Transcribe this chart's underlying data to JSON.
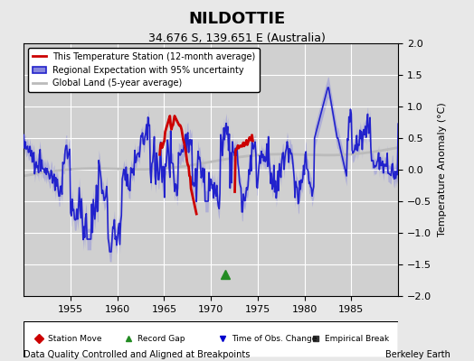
{
  "title": "NILDOTTIE",
  "subtitle": "34.676 S, 139.651 E (Australia)",
  "ylabel": "Temperature Anomaly (°C)",
  "xlabel_note": "Data Quality Controlled and Aligned at Breakpoints",
  "credit": "Berkeley Earth",
  "ylim": [
    -2,
    2
  ],
  "xlim": [
    1950,
    1990
  ],
  "xticks": [
    1955,
    1960,
    1965,
    1970,
    1975,
    1980,
    1985
  ],
  "yticks": [
    -2,
    -1.5,
    -1,
    -0.5,
    0,
    0.5,
    1,
    1.5,
    2
  ],
  "bg_color": "#e8e8e8",
  "plot_bg_color": "#d8d8d8",
  "grid_color": "#ffffff",
  "legend_items": [
    {
      "label": "This Temperature Station (12-month average)",
      "color": "#cc0000",
      "lw": 2.0
    },
    {
      "label": "Regional Expectation with 95% uncertainty",
      "color": "#3333cc",
      "lw": 1.5
    },
    {
      "label": "Global Land (5-year average)",
      "color": "#aaaaaa",
      "lw": 2.0
    }
  ],
  "marker_items": [
    {
      "label": "Station Move",
      "color": "#cc0000",
      "marker": "D"
    },
    {
      "label": "Record Gap",
      "color": "#228B22",
      "marker": "^"
    },
    {
      "label": "Time of Obs. Change",
      "color": "#0000cc",
      "marker": "v"
    },
    {
      "label": "Empirical Break",
      "color": "#333333",
      "marker": "s"
    }
  ],
  "record_gap_x": 1971.5,
  "record_gap_y": -1.65,
  "red_segment1_start": 1964.5,
  "red_segment1_end": 1968.5,
  "red_segment2_start": 1972.5,
  "red_segment2_end": 1974.5
}
